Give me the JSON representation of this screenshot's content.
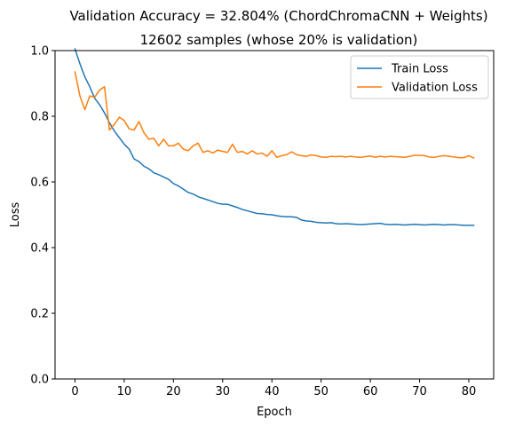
{
  "chart_data": {
    "type": "line",
    "title": "Validation Accuracy = 32.804% (ChordChromaCNN + Weights)",
    "subtitle": "12602 samples (whose 20% is validation)",
    "xlabel": "Epoch",
    "ylabel": "Loss",
    "xlim": [
      -4.05,
      85.05
    ],
    "ylim": [
      0,
      1
    ],
    "xticks": [
      0,
      10,
      20,
      30,
      40,
      50,
      60,
      70,
      80
    ],
    "yticks": [
      0.0,
      0.2,
      0.4,
      0.6,
      0.8,
      1.0
    ],
    "xtick_labels": [
      "0",
      "10",
      "20",
      "30",
      "40",
      "50",
      "60",
      "70",
      "80"
    ],
    "ytick_labels": [
      "0.0",
      "0.2",
      "0.4",
      "0.6",
      "0.8",
      "1.0"
    ],
    "grid": false,
    "legend_position": "top-right",
    "series": [
      {
        "name": "Train Loss",
        "color": "#1f77b4",
        "values": [
          1.005,
          0.96,
          0.92,
          0.89,
          0.855,
          0.835,
          0.81,
          0.78,
          0.755,
          0.735,
          0.715,
          0.7,
          0.67,
          0.662,
          0.648,
          0.64,
          0.628,
          0.622,
          0.615,
          0.608,
          0.595,
          0.588,
          0.578,
          0.568,
          0.563,
          0.555,
          0.55,
          0.545,
          0.54,
          0.535,
          0.532,
          0.532,
          0.527,
          0.522,
          0.516,
          0.512,
          0.508,
          0.504,
          0.503,
          0.501,
          0.5,
          0.497,
          0.495,
          0.494,
          0.494,
          0.492,
          0.484,
          0.481,
          0.48,
          0.477,
          0.476,
          0.475,
          0.476,
          0.473,
          0.472,
          0.473,
          0.472,
          0.471,
          0.47,
          0.471,
          0.472,
          0.473,
          0.474,
          0.471,
          0.47,
          0.471,
          0.47,
          0.469,
          0.47,
          0.471,
          0.47,
          0.469,
          0.47,
          0.471,
          0.47,
          0.469,
          0.47,
          0.47,
          0.469,
          0.468,
          0.468,
          0.468
        ]
      },
      {
        "name": "Validation Loss",
        "color": "#ff7f0e",
        "values": [
          0.935,
          0.862,
          0.82,
          0.862,
          0.858,
          0.88,
          0.89,
          0.758,
          0.775,
          0.797,
          0.787,
          0.762,
          0.758,
          0.784,
          0.75,
          0.73,
          0.733,
          0.71,
          0.73,
          0.71,
          0.71,
          0.718,
          0.7,
          0.695,
          0.71,
          0.718,
          0.69,
          0.695,
          0.688,
          0.697,
          0.693,
          0.69,
          0.715,
          0.69,
          0.693,
          0.685,
          0.695,
          0.685,
          0.688,
          0.678,
          0.695,
          0.675,
          0.68,
          0.683,
          0.692,
          0.683,
          0.68,
          0.678,
          0.682,
          0.68,
          0.676,
          0.675,
          0.678,
          0.677,
          0.678,
          0.676,
          0.678,
          0.676,
          0.675,
          0.677,
          0.679,
          0.675,
          0.678,
          0.676,
          0.678,
          0.677,
          0.676,
          0.675,
          0.678,
          0.681,
          0.681,
          0.68,
          0.676,
          0.675,
          0.678,
          0.68,
          0.678,
          0.676,
          0.674,
          0.674,
          0.68,
          0.673
        ]
      }
    ]
  }
}
